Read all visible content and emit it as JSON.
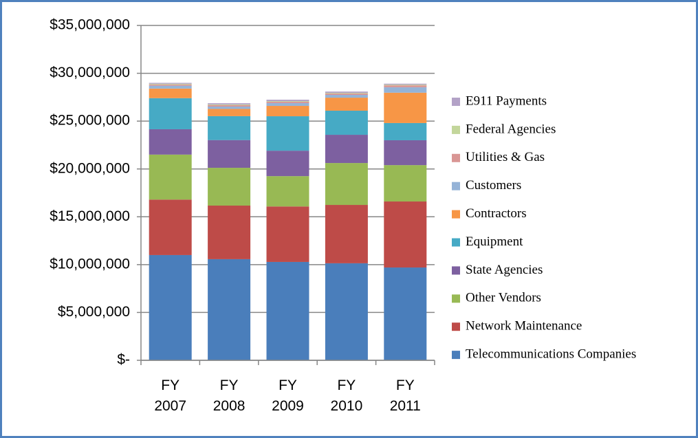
{
  "chart_data": {
    "type": "stacked_bar",
    "categories": [
      "FY 2007",
      "FY 2008",
      "FY 2009",
      "FY 2010",
      "FY 2011"
    ],
    "series": [
      {
        "name": "Telecommunications Companies",
        "color": "#4a7ebb",
        "values": [
          11000000,
          10570000,
          10280000,
          10140000,
          9700000
        ]
      },
      {
        "name": "Network Maintenance",
        "color": "#be4b48",
        "values": [
          5800000,
          5600000,
          5800000,
          6100000,
          6900000
        ]
      },
      {
        "name": "Other Vendors",
        "color": "#98b954",
        "values": [
          4700000,
          3950000,
          3170000,
          4380000,
          3800000
        ]
      },
      {
        "name": "State Agencies",
        "color": "#7d60a0",
        "values": [
          2650000,
          2900000,
          2660000,
          2950000,
          2600000
        ]
      },
      {
        "name": "Equipment",
        "color": "#46aac5",
        "values": [
          3250000,
          2500000,
          3600000,
          2520000,
          1800000
        ]
      },
      {
        "name": "Contractors",
        "color": "#f79646",
        "values": [
          1000000,
          750000,
          1080000,
          1360000,
          3170000
        ]
      },
      {
        "name": "Customers",
        "color": "#95b3d7",
        "values": [
          300000,
          250000,
          290000,
          290000,
          570000
        ]
      },
      {
        "name": "Utilities & Gas",
        "color": "#d99694",
        "values": [
          130000,
          150000,
          140000,
          140000,
          200000
        ]
      },
      {
        "name": "Federal Agencies",
        "color": "#c3d69b",
        "values": [
          70000,
          70000,
          70000,
          70000,
          70000
        ]
      },
      {
        "name": "E911 Payments",
        "color": "#b3a2c7",
        "values": [
          100000,
          130000,
          150000,
          140000,
          100000
        ]
      }
    ],
    "ylim": [
      0,
      35000000
    ],
    "yticks": [
      {
        "value": 0,
        "label": "$-"
      },
      {
        "value": 5000000,
        "label": "$5,000,000"
      },
      {
        "value": 10000000,
        "label": "$10,000,000"
      },
      {
        "value": 15000000,
        "label": "$15,000,000"
      },
      {
        "value": 20000000,
        "label": "$20,000,000"
      },
      {
        "value": 25000000,
        "label": "$25,000,000"
      },
      {
        "value": 30000000,
        "label": "$30,000,000"
      },
      {
        "value": 35000000,
        "label": "$35,000,000"
      }
    ],
    "grid": true,
    "legend": "right"
  }
}
